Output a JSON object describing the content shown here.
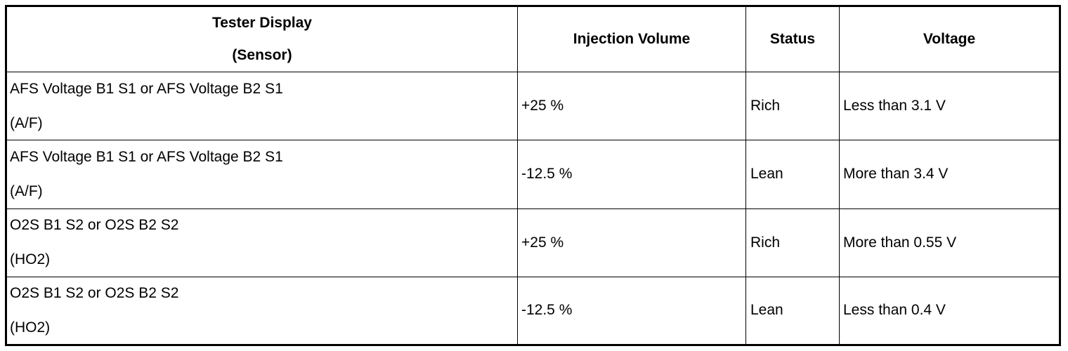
{
  "table": {
    "headers": {
      "sensor_line1": "Tester Display",
      "sensor_line2": "(Sensor)",
      "injection_volume": "Injection Volume",
      "status": "Status",
      "voltage": "Voltage"
    },
    "rows": [
      {
        "sensor": "AFS Voltage B1 S1 or AFS Voltage B2 S1",
        "sensor_type": "(A/F)",
        "injection_volume": "+25 %",
        "status": "Rich",
        "voltage": "Less than 3.1 V"
      },
      {
        "sensor": "AFS Voltage B1 S1 or AFS Voltage B2 S1",
        "sensor_type": "(A/F)",
        "injection_volume": "-12.5 %",
        "status": "Lean",
        "voltage": "More than 3.4 V"
      },
      {
        "sensor": "O2S B1 S2 or O2S B2 S2",
        "sensor_type": "(HO2)",
        "injection_volume": "+25 %",
        "status": "Rich",
        "voltage": "More than 0.55 V"
      },
      {
        "sensor": "O2S B1 S2 or O2S B2 S2",
        "sensor_type": "(HO2)",
        "injection_volume": "-12.5 %",
        "status": "Lean",
        "voltage": "Less than 0.4 V"
      }
    ]
  }
}
